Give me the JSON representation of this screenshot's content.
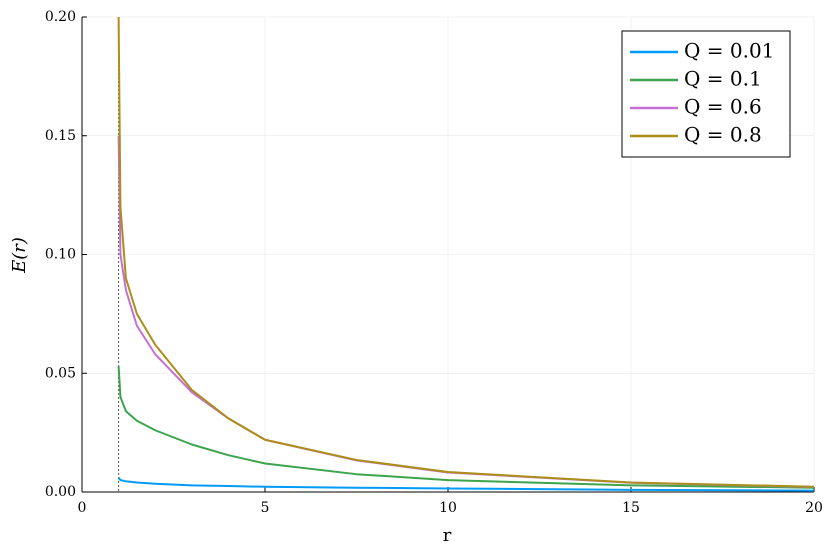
{
  "chart_data": {
    "type": "line",
    "x_label": "r",
    "y_label": "E(r)",
    "x": [
      1,
      1.05,
      1.2,
      1.5,
      2,
      3,
      4,
      5,
      7.5,
      10,
      15,
      20
    ],
    "series": [
      {
        "name": "Q = 0.01",
        "color": "#009af9",
        "values": [
          0.006,
          0.005,
          0.0045,
          0.004,
          0.0035,
          0.0028,
          0.0025,
          0.0022,
          0.0018,
          0.0015,
          0.0009,
          0.0006
        ]
      },
      {
        "name": "Q = 0.1",
        "color": "#3da44d",
        "values": [
          0.053,
          0.04,
          0.034,
          0.03,
          0.026,
          0.02,
          0.0155,
          0.012,
          0.0075,
          0.005,
          0.0028,
          0.0018
        ]
      },
      {
        "name": "Q = 0.6",
        "color": "#c271d2",
        "values": [
          0.15,
          0.1,
          0.085,
          0.07,
          0.058,
          0.042,
          0.031,
          0.022,
          0.0133,
          0.0082,
          0.0039,
          0.0021
        ]
      },
      {
        "name": "Q = 0.8",
        "color": "#ac8e18",
        "values": [
          0.2,
          0.12,
          0.09,
          0.075,
          0.062,
          0.043,
          0.031,
          0.022,
          0.0135,
          0.0084,
          0.004,
          0.0022
        ]
      }
    ],
    "vlines": [
      1
    ],
    "xlim": [
      0,
      20
    ],
    "xticks": [
      0,
      5,
      10,
      15,
      20
    ],
    "ylim": [
      0,
      0.2
    ],
    "yticks": [
      {
        "value": 0,
        "label": "0.00"
      },
      {
        "value": 0.05,
        "label": "0.05"
      },
      {
        "value": 0.1,
        "label": "0.10"
      },
      {
        "value": 0.15,
        "label": "0.15"
      },
      {
        "value": 0.2,
        "label": "0.20"
      }
    ],
    "grid": true,
    "legend": "top-right"
  }
}
